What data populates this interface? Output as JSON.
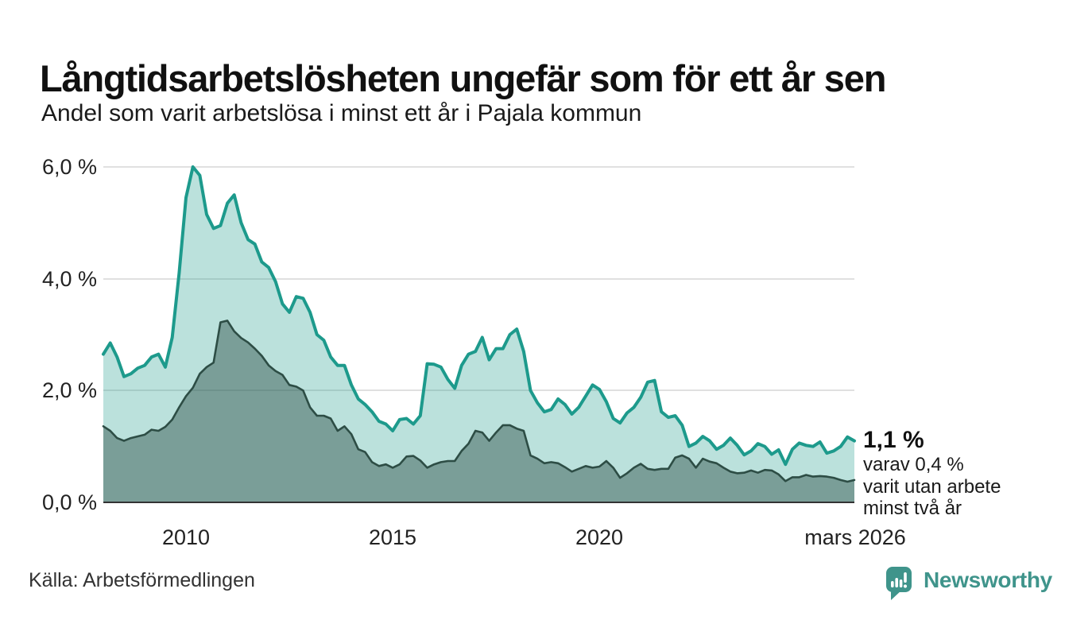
{
  "header": {
    "title": "Långtidsarbetslösheten ungefär som för ett år sen",
    "subtitle": "Andel som varit arbetslösa i minst ett år i Pajala kommun"
  },
  "annotation": {
    "latest_total_label": "1,1 %",
    "detail_line1": "varav 0,4 %",
    "detail_line2": "varit utan arbete",
    "detail_line3": "minst två år"
  },
  "footer": {
    "source": "Källa: Arbetsförmedlingen",
    "brand": "Newsworthy"
  },
  "colors": {
    "accent_teal": "#1d9a8c",
    "dark_green": "#2d4d45",
    "mint_fill": "rgba(29,154,140,0.30)",
    "dark_fill": "rgba(45,77,69,0.45)",
    "brand": "#3f948b",
    "grid": "#e0e0e0",
    "axis": "#333333"
  },
  "chart_data": {
    "type": "area",
    "title": "Långtidsarbetslösheten ungefär som för ett år sen",
    "subtitle": "Andel som varit arbetslösa i minst ett år i Pajala kommun",
    "unit": "%",
    "x_start": 2008.0,
    "x_step": 0.16667,
    "ylim": [
      0,
      6
    ],
    "grid": true,
    "legend_position": "none",
    "yticks": [
      6,
      4,
      2,
      0
    ],
    "ytick_labels": [
      "6,0 %",
      "4,0 %",
      "2,0 %",
      "0,0 %"
    ],
    "xticks": [
      2010,
      2015,
      2020,
      2026.17
    ],
    "xtick_labels": [
      "2010",
      "2015",
      "2020",
      "mars 2026"
    ],
    "latest": {
      "total_min_one_year": 1.1,
      "min_two_years": 0.4
    },
    "series": [
      {
        "name": "Arbetslösa minst ett år",
        "line_color": "#1d9a8c",
        "fill_color": "rgba(29,154,140,0.30)",
        "values": [
          2.65,
          2.85,
          2.6,
          2.25,
          2.3,
          2.4,
          2.45,
          2.6,
          2.65,
          2.42,
          2.95,
          4.1,
          5.45,
          6.0,
          5.85,
          5.15,
          4.9,
          4.95,
          5.35,
          5.5,
          5.0,
          4.7,
          4.62,
          4.3,
          4.2,
          3.95,
          3.55,
          3.4,
          3.68,
          3.65,
          3.4,
          3.0,
          2.9,
          2.6,
          2.45,
          2.45,
          2.1,
          1.85,
          1.75,
          1.62,
          1.45,
          1.4,
          1.28,
          1.48,
          1.5,
          1.4,
          1.55,
          2.48,
          2.47,
          2.42,
          2.2,
          2.04,
          2.45,
          2.65,
          2.7,
          2.95,
          2.55,
          2.75,
          2.75,
          3.0,
          3.1,
          2.7,
          2.0,
          1.78,
          1.62,
          1.66,
          1.85,
          1.75,
          1.58,
          1.7,
          1.9,
          2.1,
          2.02,
          1.8,
          1.5,
          1.42,
          1.6,
          1.7,
          1.88,
          2.15,
          2.18,
          1.62,
          1.52,
          1.55,
          1.38,
          1.0,
          1.06,
          1.18,
          1.1,
          0.95,
          1.02,
          1.15,
          1.02,
          0.85,
          0.92,
          1.05,
          1.0,
          0.86,
          0.94,
          0.68,
          0.95,
          1.06,
          1.02,
          1.0,
          1.08,
          0.88,
          0.92,
          1.0,
          1.17,
          1.1
        ]
      },
      {
        "name": "Arbetslösa minst två år",
        "line_color": "#2d4d45",
        "fill_color": "rgba(45,77,69,0.45)",
        "values": [
          1.36,
          1.28,
          1.15,
          1.1,
          1.15,
          1.18,
          1.21,
          1.3,
          1.28,
          1.35,
          1.48,
          1.7,
          1.9,
          2.05,
          2.3,
          2.42,
          2.5,
          3.22,
          3.25,
          3.06,
          2.94,
          2.86,
          2.75,
          2.62,
          2.45,
          2.35,
          2.28,
          2.1,
          2.07,
          2.0,
          1.7,
          1.55,
          1.55,
          1.5,
          1.28,
          1.36,
          1.22,
          0.95,
          0.9,
          0.72,
          0.65,
          0.68,
          0.62,
          0.68,
          0.82,
          0.83,
          0.75,
          0.62,
          0.68,
          0.72,
          0.74,
          0.74,
          0.92,
          1.05,
          1.28,
          1.25,
          1.1,
          1.25,
          1.38,
          1.38,
          1.32,
          1.28,
          0.84,
          0.78,
          0.7,
          0.72,
          0.7,
          0.63,
          0.55,
          0.6,
          0.65,
          0.62,
          0.64,
          0.74,
          0.62,
          0.44,
          0.52,
          0.62,
          0.69,
          0.6,
          0.58,
          0.6,
          0.6,
          0.8,
          0.84,
          0.78,
          0.62,
          0.78,
          0.73,
          0.7,
          0.62,
          0.55,
          0.52,
          0.53,
          0.57,
          0.53,
          0.58,
          0.57,
          0.5,
          0.38,
          0.45,
          0.45,
          0.49,
          0.46,
          0.47,
          0.46,
          0.44,
          0.4,
          0.37,
          0.4
        ]
      }
    ]
  }
}
